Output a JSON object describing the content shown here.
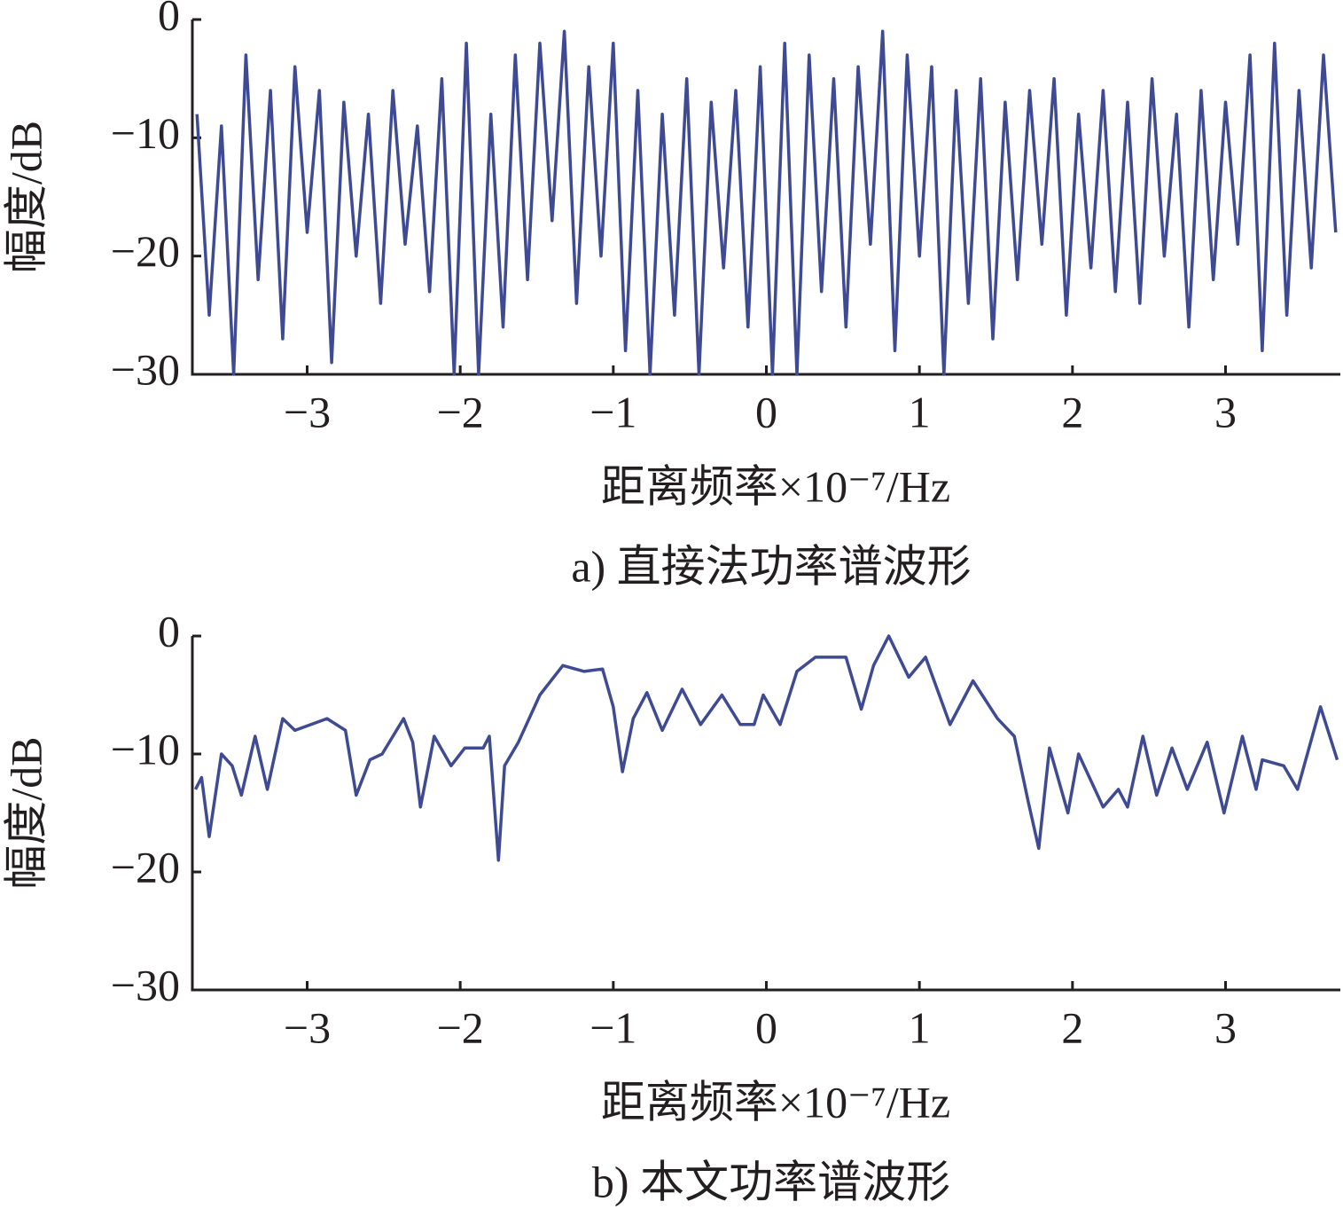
{
  "chart_data": [
    {
      "type": "line",
      "caption": "a) 直接法功率谱波形",
      "x_label": "距离频率×10⁻⁷/Hz",
      "y_label": "幅度/dB",
      "xlim": [
        -3.75,
        3.75
      ],
      "ylim": [
        -30,
        0
      ],
      "xticks": [
        {
          "value": -3,
          "label": "−3"
        },
        {
          "value": -2,
          "label": "−2"
        },
        {
          "value": -1,
          "label": "−1"
        },
        0,
        1,
        2,
        3
      ],
      "yticks": [
        {
          "value": -30,
          "label": "−30"
        },
        {
          "value": -20,
          "label": "−20"
        },
        {
          "value": -10,
          "label": "−10"
        },
        0
      ],
      "color": "#3f4a94",
      "x": [
        -3.72,
        -3.64,
        -3.56,
        -3.48,
        -3.4,
        -3.32,
        -3.24,
        -3.16,
        -3.08,
        -3.0,
        -2.92,
        -2.84,
        -2.76,
        -2.68,
        -2.6,
        -2.52,
        -2.44,
        -2.36,
        -2.28,
        -2.2,
        -2.12,
        -2.04,
        -1.96,
        -1.88,
        -1.8,
        -1.72,
        -1.64,
        -1.56,
        -1.48,
        -1.4,
        -1.32,
        -1.24,
        -1.16,
        -1.08,
        -1.0,
        -0.92,
        -0.84,
        -0.76,
        -0.68,
        -0.6,
        -0.52,
        -0.44,
        -0.36,
        -0.28,
        -0.2,
        -0.12,
        -0.04,
        0.04,
        0.12,
        0.2,
        0.28,
        0.36,
        0.44,
        0.52,
        0.6,
        0.68,
        0.76,
        0.84,
        0.92,
        1.0,
        1.08,
        1.16,
        1.24,
        1.32,
        1.4,
        1.48,
        1.56,
        1.64,
        1.72,
        1.8,
        1.88,
        1.96,
        2.04,
        2.12,
        2.2,
        2.28,
        2.36,
        2.44,
        2.52,
        2.6,
        2.68,
        2.76,
        2.84,
        2.92,
        3.0,
        3.08,
        3.16,
        3.24,
        3.32,
        3.4,
        3.48,
        3.56,
        3.64,
        3.72
      ],
      "values": [
        -8,
        -25,
        -9,
        -30,
        -3,
        -22,
        -6,
        -27,
        -4,
        -18,
        -6,
        -29,
        -7,
        -20,
        -8,
        -24,
        -6,
        -19,
        -9,
        -23,
        -5,
        -30,
        -2,
        -30,
        -8,
        -26,
        -3,
        -22,
        -2,
        -17,
        -1,
        -24,
        -4,
        -20,
        -2,
        -28,
        -6,
        -30,
        -8,
        -25,
        -5,
        -30,
        -7,
        -21,
        -6,
        -26,
        -4,
        -30,
        -2,
        -30,
        -3,
        -23,
        -5,
        -26,
        -4,
        -19,
        -1,
        -28,
        -3,
        -20,
        -4,
        -30,
        -6,
        -24,
        -5,
        -27,
        -7,
        -22,
        -6,
        -19,
        -5,
        -25,
        -8,
        -21,
        -6,
        -23,
        -7,
        -24,
        -5,
        -20,
        -8,
        -26,
        -6,
        -22,
        -7,
        -19,
        -3,
        -28,
        -2,
        -25,
        -6,
        -21,
        -3,
        -18
      ]
    },
    {
      "type": "line",
      "caption": "b) 本文功率谱波形",
      "x_label": "距离频率×10⁻⁷/Hz",
      "y_label": "幅度/dB",
      "xlim": [
        -3.75,
        3.75
      ],
      "ylim": [
        -30,
        0
      ],
      "xticks": [
        {
          "value": -3,
          "label": "−3"
        },
        {
          "value": -2,
          "label": "−2"
        },
        {
          "value": -1,
          "label": "−1"
        },
        0,
        1,
        2,
        3
      ],
      "yticks": [
        {
          "value": -30,
          "label": "−30"
        },
        {
          "value": -20,
          "label": "−20"
        },
        {
          "value": -10,
          "label": "−10"
        },
        0
      ],
      "color": "#3f4a94",
      "x": [
        -3.73,
        -3.69,
        -3.64,
        -3.56,
        -3.49,
        -3.43,
        -3.34,
        -3.26,
        -3.16,
        -3.08,
        -2.87,
        -2.75,
        -2.68,
        -2.59,
        -2.51,
        -2.37,
        -2.31,
        -2.26,
        -2.17,
        -2.06,
        -1.97,
        -1.85,
        -1.81,
        -1.75,
        -1.71,
        -1.62,
        -1.48,
        -1.33,
        -1.19,
        -1.07,
        -1.0,
        -0.94,
        -0.87,
        -0.78,
        -0.68,
        -0.55,
        -0.43,
        -0.29,
        -0.17,
        -0.08,
        -0.02,
        0.09,
        0.2,
        0.32,
        0.52,
        0.62,
        0.7,
        0.8,
        0.93,
        1.04,
        1.2,
        1.35,
        1.51,
        1.62,
        1.71,
        1.78,
        1.85,
        1.97,
        2.04,
        2.2,
        2.3,
        2.36,
        2.46,
        2.55,
        2.65,
        2.75,
        2.88,
        2.99,
        3.11,
        3.2,
        3.24,
        3.38,
        3.47,
        3.62,
        3.73
      ],
      "values": [
        -13,
        -12,
        -17,
        -10,
        -11,
        -13.5,
        -8.5,
        -13,
        -7,
        -8,
        -7,
        -8,
        -13.5,
        -10.5,
        -10,
        -7,
        -9,
        -14.5,
        -8.5,
        -11,
        -9.5,
        -9.5,
        -8.5,
        -19,
        -11,
        -9,
        -5,
        -2.5,
        -3,
        -2.8,
        -6,
        -11.5,
        -7,
        -4.8,
        -8,
        -4.5,
        -7.5,
        -5,
        -7.5,
        -7.5,
        -5,
        -7.5,
        -3,
        -1.8,
        -1.8,
        -6.2,
        -2.5,
        0,
        -3.5,
        -1.8,
        -7.5,
        -3.8,
        -7,
        -8.5,
        -14,
        -18,
        -9.5,
        -15,
        -10,
        -14.5,
        -13,
        -14.5,
        -8.5,
        -13.5,
        -9.5,
        -13,
        -9,
        -15,
        -8.5,
        -13,
        -10.5,
        -11,
        -13,
        -6,
        -10.5
      ]
    }
  ]
}
